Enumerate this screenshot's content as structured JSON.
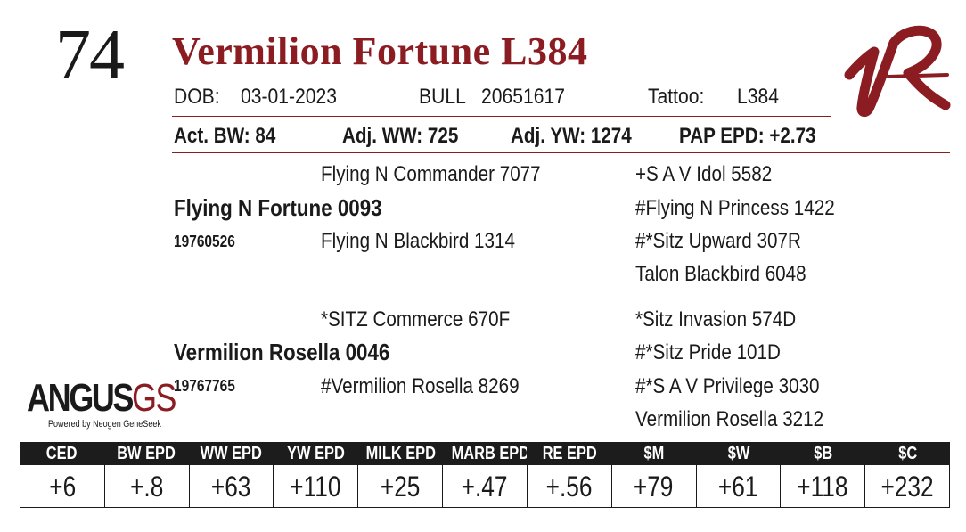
{
  "lot_number": "74",
  "animal_name": "Vermilion Fortune L384",
  "details": {
    "dob_label": "DOB:",
    "dob": "03-01-2023",
    "sex": "BULL",
    "registration": "20651617",
    "tattoo_label": "Tattoo:",
    "tattoo": "L384"
  },
  "performance": {
    "bw": "Act. BW: 84",
    "ww": "Adj. WW: 725",
    "yw": "Adj. YW: 1274",
    "pap": "PAP EPD: +2.73"
  },
  "pedigree": {
    "sire": {
      "name": "Flying N Fortune 0093",
      "registration": "19760526",
      "sire": "Flying N Commander 7077",
      "dam": "Flying N Blackbird 1314",
      "sire_sire": "+S A V Idol 5582",
      "sire_dam": "#Flying N Princess 1422",
      "dam_sire": "#*Sitz Upward 307R",
      "dam_dam": "Talon Blackbird 6048"
    },
    "dam": {
      "name": "Vermilion Rosella 0046",
      "registration": "19767765",
      "sire": "*SITZ Commerce 670F",
      "dam": "#Vermilion Rosella 8269",
      "sire_sire": "*Sitz Invasion 574D",
      "sire_dam": "#*Sitz Pride 101D",
      "dam_sire": "#*S A V Privilege 3030",
      "dam_dam": "Vermilion Rosella 3212"
    }
  },
  "logo": {
    "main": "ANGUS",
    "suffix": "GS",
    "tagline": "Powered by Neogen GeneSeek"
  },
  "brand_mark": "1R",
  "epd_headers": [
    "CED",
    "BW EPD",
    "WW EPD",
    "YW EPD",
    "MILK EPD",
    "MARB EPD",
    "RE EPD",
    "$M",
    "$W",
    "$B",
    "$C"
  ],
  "epd_values": [
    "+6",
    "+.8",
    "+63",
    "+110",
    "+25",
    "+.47",
    "+.56",
    "+79",
    "+61",
    "+118",
    "+232"
  ],
  "colors": {
    "accent": "#8b1c22",
    "header_bg": "#1c1c1c"
  }
}
